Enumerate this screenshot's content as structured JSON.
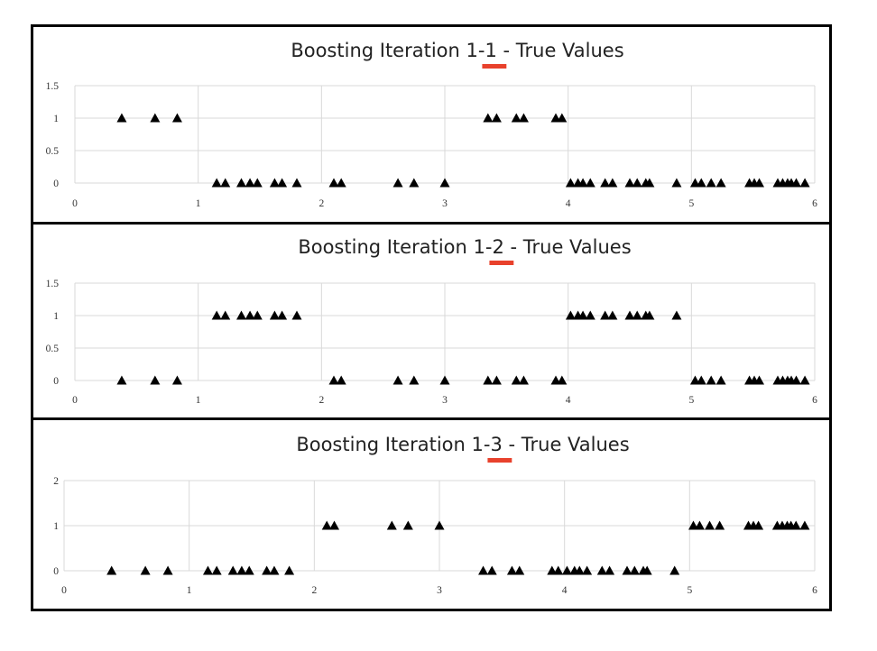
{
  "accent_color": "#e8412c",
  "marker_color": "#000000",
  "chart_data": [
    {
      "type": "scatter",
      "title_prefix": "Boosting Iteration 1-",
      "title_highlight": "1",
      "title_suffix": " - True Values",
      "xlim": [
        0,
        6
      ],
      "ylim": [
        0,
        1.5
      ],
      "xticks": [
        "0",
        "1",
        "2",
        "3",
        "4",
        "5",
        "6"
      ],
      "yticks": [
        "0",
        "0.5",
        "1",
        "1.5"
      ],
      "marker": "triangle",
      "grid": true,
      "points": [
        [
          0.38,
          1
        ],
        [
          0.65,
          1
        ],
        [
          0.83,
          1
        ],
        [
          1.15,
          0
        ],
        [
          1.22,
          0
        ],
        [
          1.35,
          0
        ],
        [
          1.42,
          0
        ],
        [
          1.48,
          0
        ],
        [
          1.62,
          0
        ],
        [
          1.68,
          0
        ],
        [
          1.8,
          0
        ],
        [
          2.1,
          0
        ],
        [
          2.16,
          0
        ],
        [
          2.62,
          0
        ],
        [
          2.75,
          0
        ],
        [
          3.0,
          0
        ],
        [
          3.35,
          1
        ],
        [
          3.42,
          1
        ],
        [
          3.58,
          1
        ],
        [
          3.64,
          1
        ],
        [
          3.9,
          1
        ],
        [
          3.95,
          1
        ],
        [
          4.02,
          0
        ],
        [
          4.08,
          0
        ],
        [
          4.12,
          0
        ],
        [
          4.18,
          0
        ],
        [
          4.3,
          0
        ],
        [
          4.36,
          0
        ],
        [
          4.5,
          0
        ],
        [
          4.56,
          0
        ],
        [
          4.63,
          0
        ],
        [
          4.66,
          0
        ],
        [
          4.88,
          0
        ],
        [
          5.03,
          0
        ],
        [
          5.08,
          0
        ],
        [
          5.16,
          0
        ],
        [
          5.24,
          0
        ],
        [
          5.47,
          0
        ],
        [
          5.51,
          0
        ],
        [
          5.55,
          0
        ],
        [
          5.7,
          0
        ],
        [
          5.74,
          0
        ],
        [
          5.78,
          0
        ],
        [
          5.81,
          0
        ],
        [
          5.85,
          0
        ],
        [
          5.92,
          0
        ]
      ]
    },
    {
      "type": "scatter",
      "title_prefix": "Boosting Iteration 1-",
      "title_highlight": "2",
      "title_suffix": " - True Values",
      "xlim": [
        0,
        6
      ],
      "ylim": [
        0,
        1.5
      ],
      "xticks": [
        "0",
        "1",
        "2",
        "3",
        "4",
        "5",
        "6"
      ],
      "yticks": [
        "0",
        "0.5",
        "1",
        "1.5"
      ],
      "marker": "triangle",
      "grid": true,
      "points": [
        [
          0.38,
          0
        ],
        [
          0.65,
          0
        ],
        [
          0.83,
          0
        ],
        [
          1.15,
          1
        ],
        [
          1.22,
          1
        ],
        [
          1.35,
          1
        ],
        [
          1.42,
          1
        ],
        [
          1.48,
          1
        ],
        [
          1.62,
          1
        ],
        [
          1.68,
          1
        ],
        [
          1.8,
          1
        ],
        [
          2.1,
          0
        ],
        [
          2.16,
          0
        ],
        [
          2.62,
          0
        ],
        [
          2.75,
          0
        ],
        [
          3.0,
          0
        ],
        [
          3.35,
          0
        ],
        [
          3.42,
          0
        ],
        [
          3.58,
          0
        ],
        [
          3.64,
          0
        ],
        [
          3.9,
          0
        ],
        [
          3.95,
          0
        ],
        [
          4.02,
          1
        ],
        [
          4.08,
          1
        ],
        [
          4.12,
          1
        ],
        [
          4.18,
          1
        ],
        [
          4.3,
          1
        ],
        [
          4.36,
          1
        ],
        [
          4.5,
          1
        ],
        [
          4.56,
          1
        ],
        [
          4.63,
          1
        ],
        [
          4.66,
          1
        ],
        [
          4.88,
          1
        ],
        [
          5.03,
          0
        ],
        [
          5.08,
          0
        ],
        [
          5.16,
          0
        ],
        [
          5.24,
          0
        ],
        [
          5.47,
          0
        ],
        [
          5.51,
          0
        ],
        [
          5.55,
          0
        ],
        [
          5.7,
          0
        ],
        [
          5.74,
          0
        ],
        [
          5.78,
          0
        ],
        [
          5.81,
          0
        ],
        [
          5.85,
          0
        ],
        [
          5.92,
          0
        ]
      ]
    },
    {
      "type": "scatter",
      "title_prefix": "Boosting Iteration 1-",
      "title_highlight": "3",
      "title_suffix": " - True Values",
      "xlim": [
        0,
        6
      ],
      "ylim": [
        0,
        2
      ],
      "xticks": [
        "0",
        "1",
        "2",
        "3",
        "4",
        "5",
        "6"
      ],
      "yticks": [
        "0",
        "1",
        "2"
      ],
      "marker": "triangle",
      "grid": true,
      "points": [
        [
          0.38,
          0
        ],
        [
          0.65,
          0
        ],
        [
          0.83,
          0
        ],
        [
          1.15,
          0
        ],
        [
          1.22,
          0
        ],
        [
          1.35,
          0
        ],
        [
          1.42,
          0
        ],
        [
          1.48,
          0
        ],
        [
          1.62,
          0
        ],
        [
          1.68,
          0
        ],
        [
          1.8,
          0
        ],
        [
          2.1,
          1
        ],
        [
          2.16,
          1
        ],
        [
          2.62,
          1
        ],
        [
          2.75,
          1
        ],
        [
          3.0,
          1
        ],
        [
          3.35,
          0
        ],
        [
          3.42,
          0
        ],
        [
          3.58,
          0
        ],
        [
          3.64,
          0
        ],
        [
          3.9,
          0
        ],
        [
          3.95,
          0
        ],
        [
          4.02,
          0
        ],
        [
          4.08,
          0
        ],
        [
          4.12,
          0
        ],
        [
          4.18,
          0
        ],
        [
          4.3,
          0
        ],
        [
          4.36,
          0
        ],
        [
          4.5,
          0
        ],
        [
          4.56,
          0
        ],
        [
          4.63,
          0
        ],
        [
          4.66,
          0
        ],
        [
          4.88,
          0
        ],
        [
          5.03,
          1
        ],
        [
          5.08,
          1
        ],
        [
          5.16,
          1
        ],
        [
          5.24,
          1
        ],
        [
          5.47,
          1
        ],
        [
          5.51,
          1
        ],
        [
          5.55,
          1
        ],
        [
          5.7,
          1
        ],
        [
          5.74,
          1
        ],
        [
          5.78,
          1
        ],
        [
          5.81,
          1
        ],
        [
          5.85,
          1
        ],
        [
          5.92,
          1
        ]
      ]
    }
  ]
}
